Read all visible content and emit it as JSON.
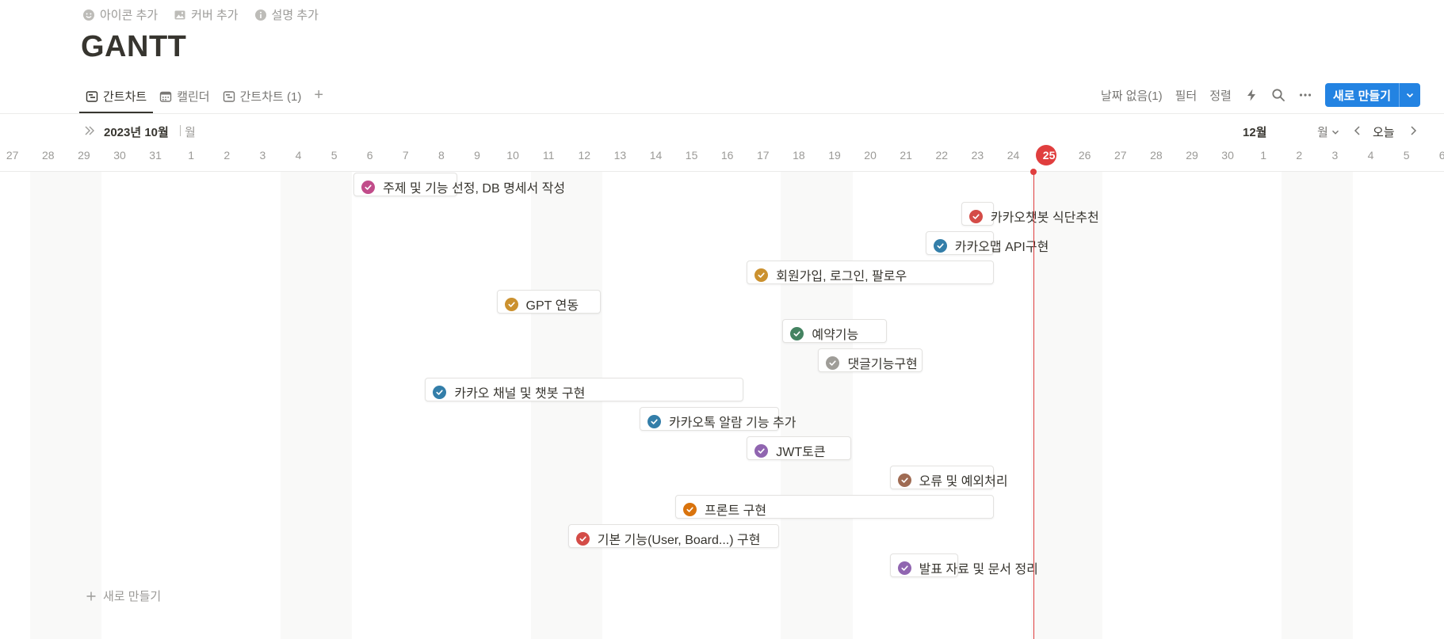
{
  "page_actions": {
    "add_icon": "아이콘 추가",
    "add_cover": "커버 추가",
    "add_description": "설명 추가"
  },
  "title": "GANTT",
  "views": [
    {
      "label": "간트차트",
      "icon": "timeline-icon"
    },
    {
      "label": "캘린더",
      "icon": "calendar-icon"
    },
    {
      "label": "간트차트 (1)",
      "icon": "timeline-icon"
    }
  ],
  "toolbar": {
    "no_date": "날짜 없음(1)",
    "filter": "필터",
    "sort": "정렬",
    "new_button": "새로 만들기"
  },
  "timeline": {
    "month_label": "2023년 10월",
    "week_label": "월",
    "month_label_12": "12월",
    "zoom": "월",
    "today": "오늘",
    "days": [
      "27",
      "28",
      "29",
      "30",
      "31",
      "1",
      "2",
      "3",
      "4",
      "5",
      "6",
      "7",
      "8",
      "9",
      "10",
      "11",
      "12",
      "13",
      "14",
      "15",
      "16",
      "17",
      "18",
      "19",
      "20",
      "21",
      "22",
      "23",
      "24",
      "25",
      "26",
      "27",
      "28",
      "29",
      "30",
      "1",
      "2",
      "3",
      "4",
      "5",
      "6"
    ],
    "today_label": "25"
  },
  "tasks": [
    {
      "name": "주제 및 기능 선정, DB 명세서 작성",
      "color": "#c14c8a"
    },
    {
      "name": "카카오챗봇 식단추천",
      "color": "#d44c47"
    },
    {
      "name": "카카오맵 API구현",
      "color": "#337ea9"
    },
    {
      "name": "회원가입, 로그인, 팔로우",
      "color": "#cb912f"
    },
    {
      "name": "GPT 연동",
      "color": "#cb912f"
    },
    {
      "name": "예약기능",
      "color": "#448361"
    },
    {
      "name": "댓글기능구현",
      "color": "#9f9d98"
    },
    {
      "name": "카카오 채널 및 챗봇 구현",
      "color": "#337ea9"
    },
    {
      "name": "카카오톡 알람 기능 추가",
      "color": "#337ea9"
    },
    {
      "name": "JWT토큰",
      "color": "#9065b0"
    },
    {
      "name": "오류 및 예외처리",
      "color": "#9f6b53"
    },
    {
      "name": "프론트 구현",
      "color": "#d9730d"
    },
    {
      "name": "기본 기능(User, Board...) 구현",
      "color": "#d44c47"
    },
    {
      "name": "발표 자료 및 문서 정리",
      "color": "#9065b0"
    }
  ],
  "new_row": "새로 만들기",
  "colors": {
    "accent": "#2383e2",
    "today": "#e03e3e"
  }
}
